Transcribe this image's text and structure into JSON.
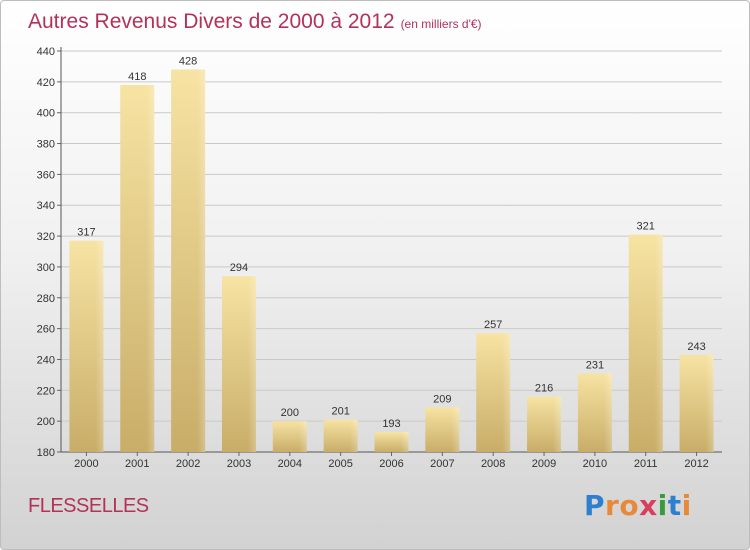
{
  "chart_data": {
    "type": "bar",
    "title": "Autres Revenus Divers de 2000 à 2012",
    "subtitle": "(en milliers d'€)",
    "categories": [
      "2000",
      "2001",
      "2002",
      "2003",
      "2004",
      "2005",
      "2006",
      "2007",
      "2008",
      "2009",
      "2010",
      "2011",
      "2012"
    ],
    "values": [
      317,
      418,
      428,
      294,
      200,
      201,
      193,
      209,
      257,
      216,
      231,
      321,
      243
    ],
    "ylim": [
      180,
      440
    ],
    "yticks": [
      180,
      200,
      220,
      240,
      260,
      280,
      300,
      320,
      340,
      360,
      380,
      400,
      420,
      440
    ],
    "grid": true,
    "data_labels": true,
    "bar_color": "#e6cd87",
    "title_color": "#b4315a"
  },
  "footer": {
    "town": "FLESSELLES",
    "logo_letters": [
      "P",
      "r",
      "o",
      "x",
      "i",
      "t",
      "i"
    ],
    "logo_colors": [
      "#2f7fd0",
      "#e8893a",
      "#e8893a",
      "#d83f5f",
      "#3a9b3a",
      "#2f7fd0",
      "#e8893a"
    ]
  }
}
